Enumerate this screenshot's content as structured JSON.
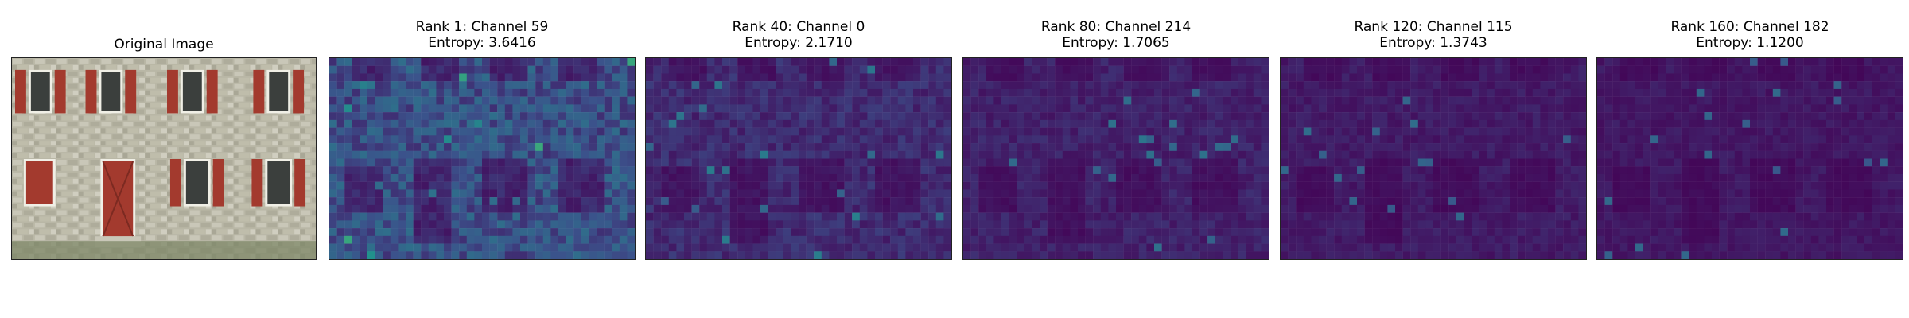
{
  "figure": {
    "panels": [
      {
        "kind": "photo",
        "title_lines": [
          "Original Image"
        ]
      },
      {
        "kind": "heatmap",
        "title_lines": [
          "Rank 1: Channel 59",
          "Entropy: 3.6416"
        ]
      },
      {
        "kind": "heatmap",
        "title_lines": [
          "Rank 40: Channel 0",
          "Entropy: 2.1710"
        ]
      },
      {
        "kind": "heatmap",
        "title_lines": [
          "Rank 80: Channel 214",
          "Entropy: 1.7065"
        ]
      },
      {
        "kind": "heatmap",
        "title_lines": [
          "Rank 120: Channel 115",
          "Entropy: 1.3743"
        ]
      },
      {
        "kind": "heatmap",
        "title_lines": [
          "Rank 160: Channel 182",
          "Entropy: 1.1200"
        ]
      }
    ]
  },
  "chart_data": [
    {
      "type": "heatmap",
      "title": "Rank 1: Channel 59",
      "subtitle": "Entropy: 3.6416",
      "rank": 1,
      "channel": 59,
      "entropy": 3.6416,
      "colormap": "viridis",
      "grid": false,
      "axes": "off",
      "brightness": 0.25
    },
    {
      "type": "heatmap",
      "title": "Rank 40: Channel 0",
      "subtitle": "Entropy: 2.1710",
      "rank": 40,
      "channel": 0,
      "entropy": 2.171,
      "colormap": "viridis",
      "grid": false,
      "axes": "off",
      "brightness": 0.13
    },
    {
      "type": "heatmap",
      "title": "Rank 80: Channel 214",
      "subtitle": "Entropy: 1.7065",
      "rank": 80,
      "channel": 214,
      "entropy": 1.7065,
      "colormap": "viridis",
      "grid": false,
      "axes": "off",
      "brightness": 0.1
    },
    {
      "type": "heatmap",
      "title": "Rank 120: Channel 115",
      "subtitle": "Entropy: 1.3743",
      "rank": 120,
      "channel": 115,
      "entropy": 1.3743,
      "colormap": "viridis",
      "grid": false,
      "axes": "off",
      "brightness": 0.08
    },
    {
      "type": "heatmap",
      "title": "Rank 160: Channel 182",
      "subtitle": "Entropy: 1.1200",
      "rank": 160,
      "channel": 182,
      "entropy": 1.12,
      "colormap": "viridis",
      "grid": false,
      "axes": "off",
      "brightness": 0.07
    }
  ]
}
